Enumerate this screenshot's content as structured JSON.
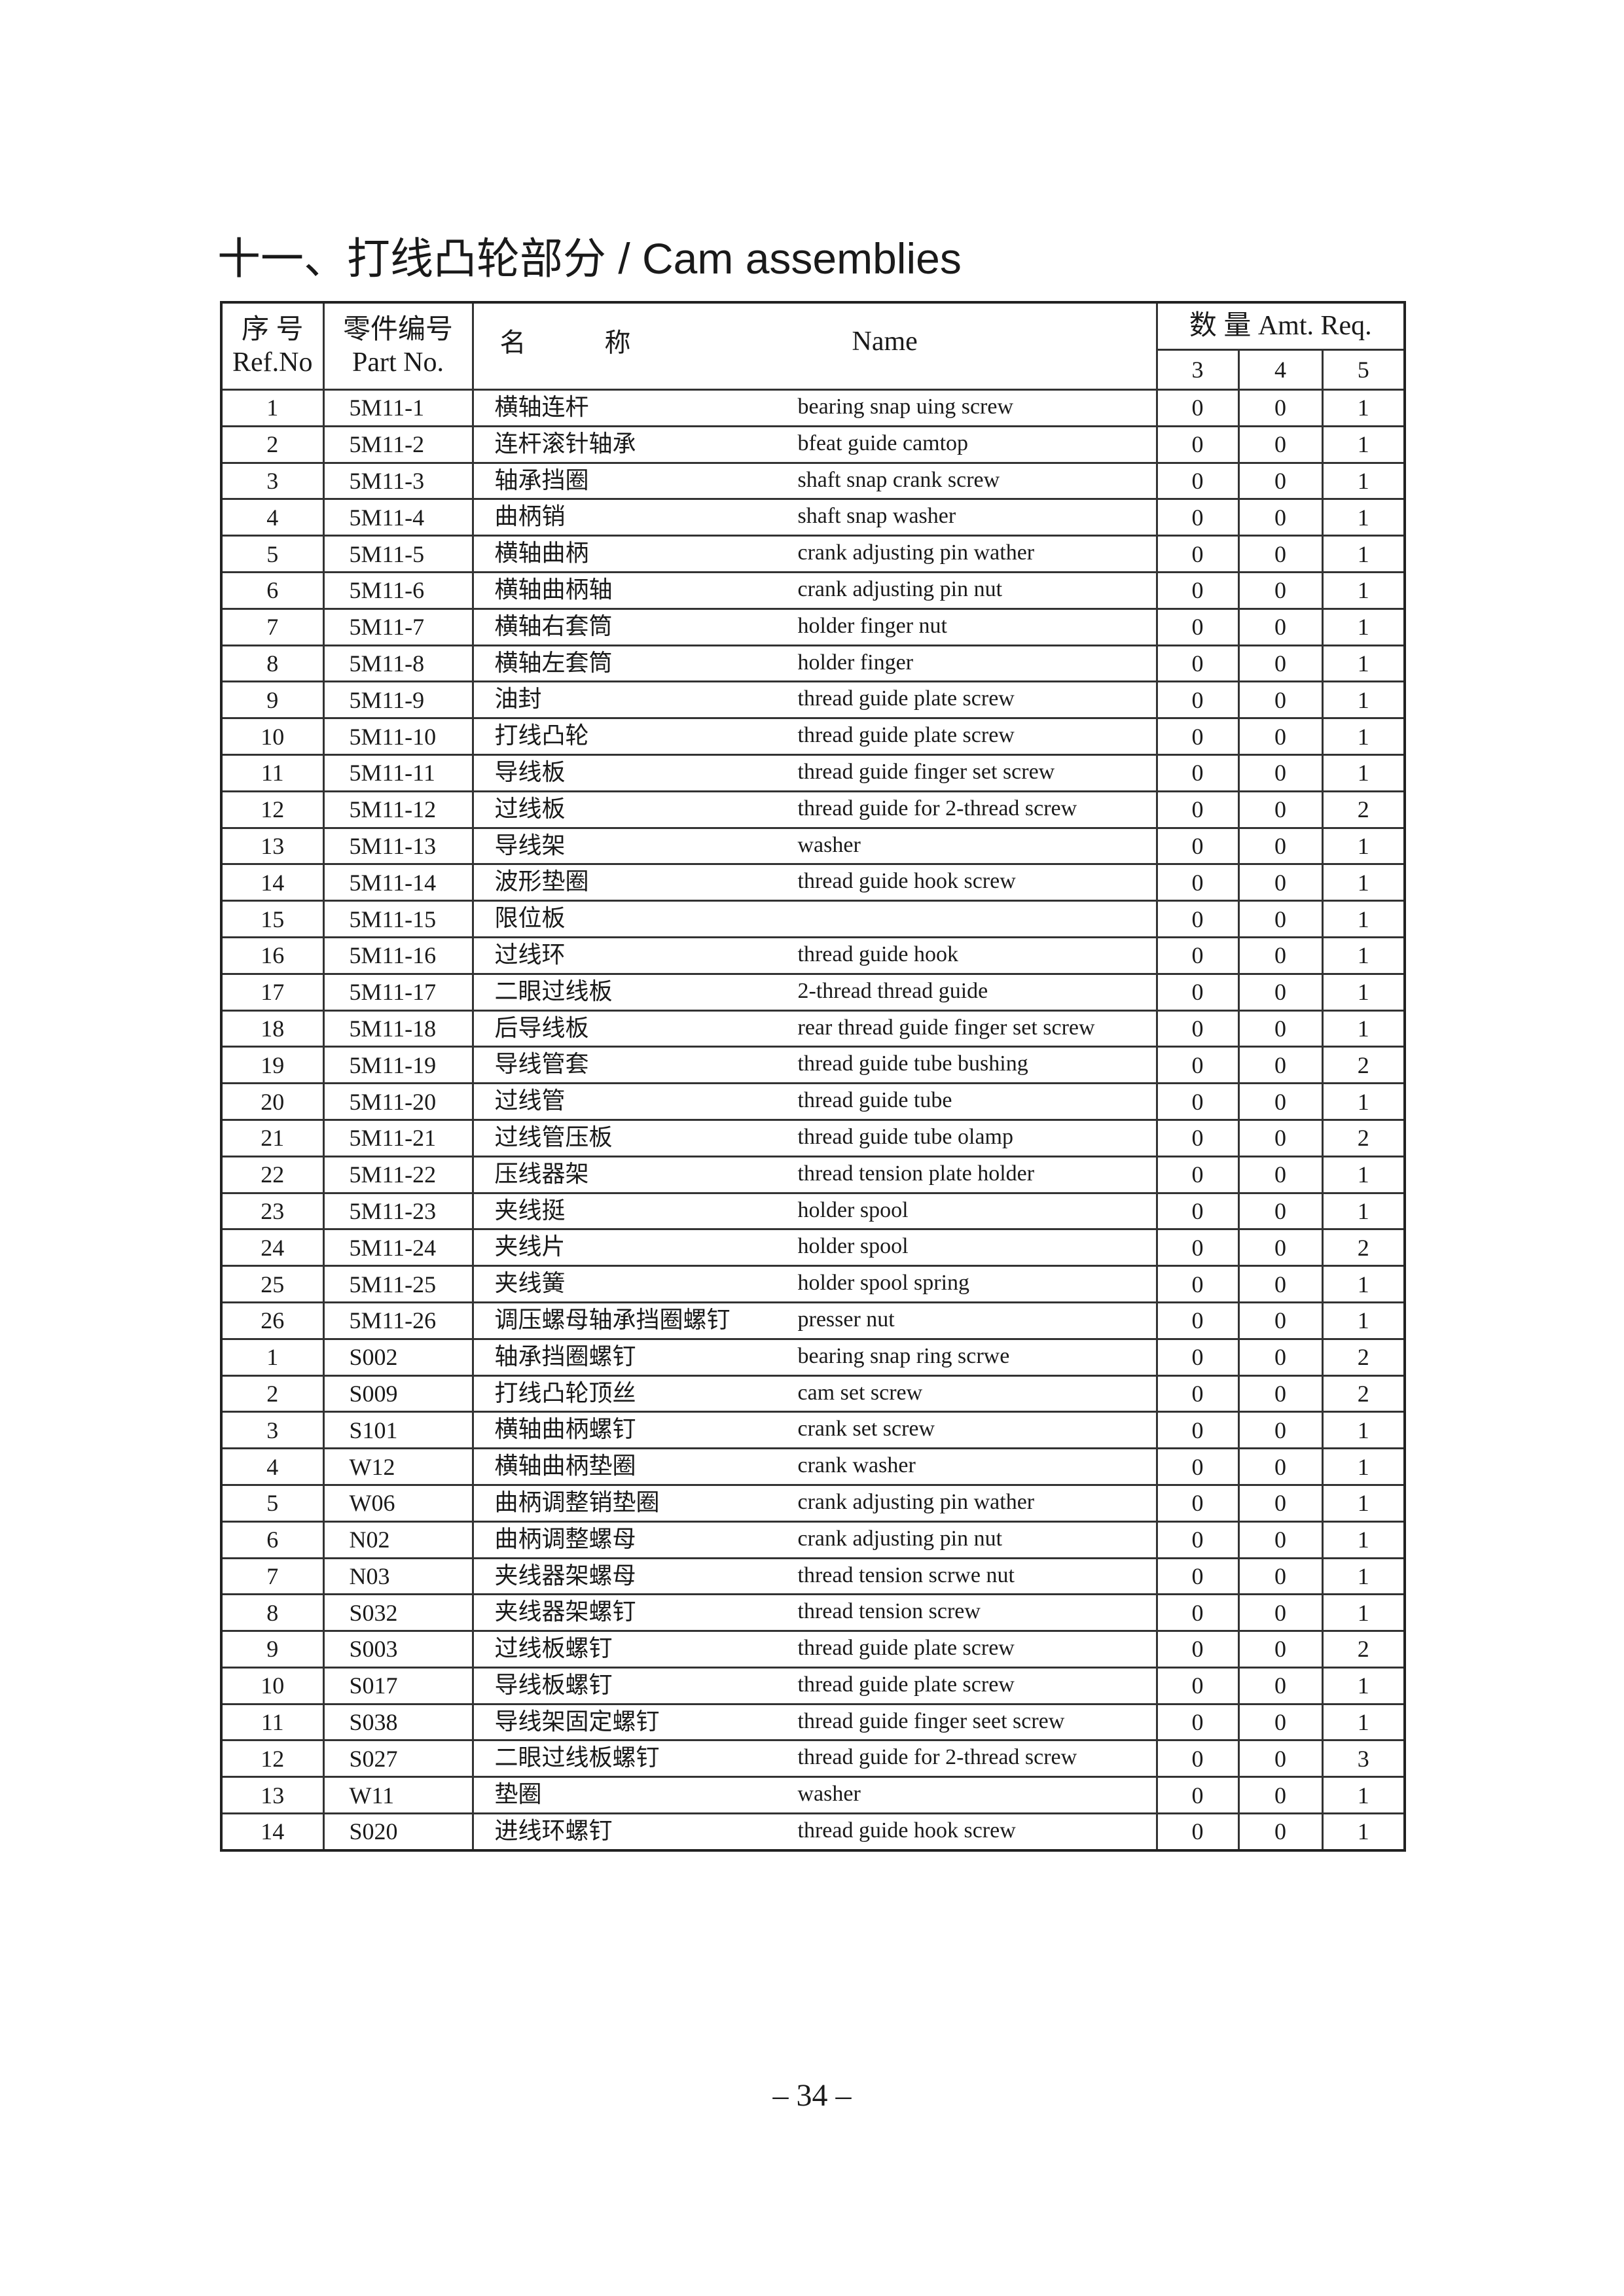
{
  "title": "十一、打线凸轮部分 / Cam assemblies",
  "table": {
    "headers": {
      "ref_cn": "序 号",
      "ref_en": "Ref.No",
      "part_cn": "零件编号",
      "part_en": "Part No.",
      "name_cn_1": "名",
      "name_cn_2": "称",
      "name_en": "Name",
      "amt": "数 量 Amt. Req.",
      "amt_cols": [
        "3",
        "4",
        "5"
      ]
    },
    "rows": [
      {
        "ref": "1",
        "part": "5M11-1",
        "cn": "横轴连杆",
        "en": "bearing snap uing screw",
        "q": [
          "0",
          "0",
          "1"
        ]
      },
      {
        "ref": "2",
        "part": "5M11-2",
        "cn": "连杆滚针轴承",
        "en": "bfeat guide camtop",
        "q": [
          "0",
          "0",
          "1"
        ]
      },
      {
        "ref": "3",
        "part": "5M11-3",
        "cn": "轴承挡圈",
        "en": "shaft snap crank screw",
        "q": [
          "0",
          "0",
          "1"
        ]
      },
      {
        "ref": "4",
        "part": "5M11-4",
        "cn": "曲柄销",
        "en": "shaft snap washer",
        "q": [
          "0",
          "0",
          "1"
        ]
      },
      {
        "ref": "5",
        "part": "5M11-5",
        "cn": "横轴曲柄",
        "en": "crank adjusting pin wather",
        "q": [
          "0",
          "0",
          "1"
        ]
      },
      {
        "ref": "6",
        "part": "5M11-6",
        "cn": "横轴曲柄轴",
        "en": "crank adjusting pin nut",
        "q": [
          "0",
          "0",
          "1"
        ]
      },
      {
        "ref": "7",
        "part": "5M11-7",
        "cn": "横轴右套筒",
        "en": "holder finger nut",
        "q": [
          "0",
          "0",
          "1"
        ]
      },
      {
        "ref": "8",
        "part": "5M11-8",
        "cn": "横轴左套筒",
        "en": "holder finger",
        "q": [
          "0",
          "0",
          "1"
        ]
      },
      {
        "ref": "9",
        "part": "5M11-9",
        "cn": "油封",
        "en": "thread guide plate screw",
        "q": [
          "0",
          "0",
          "1"
        ]
      },
      {
        "ref": "10",
        "part": "5M11-10",
        "cn": "打线凸轮",
        "en": "thread guide plate screw",
        "q": [
          "0",
          "0",
          "1"
        ]
      },
      {
        "ref": "11",
        "part": "5M11-11",
        "cn": "导线板",
        "en": "thread guide finger set screw",
        "q": [
          "0",
          "0",
          "1"
        ]
      },
      {
        "ref": "12",
        "part": "5M11-12",
        "cn": "过线板",
        "en": "thread guide for 2-thread screw",
        "q": [
          "0",
          "0",
          "2"
        ]
      },
      {
        "ref": "13",
        "part": "5M11-13",
        "cn": "导线架",
        "en": "washer",
        "q": [
          "0",
          "0",
          "1"
        ]
      },
      {
        "ref": "14",
        "part": "5M11-14",
        "cn": "波形垫圈",
        "en": "thread guide hook screw",
        "q": [
          "0",
          "0",
          "1"
        ]
      },
      {
        "ref": "15",
        "part": "5M11-15",
        "cn": "限位板",
        "en": "",
        "q": [
          "0",
          "0",
          "1"
        ]
      },
      {
        "ref": "16",
        "part": "5M11-16",
        "cn": "过线环",
        "en": "thread guide hook",
        "q": [
          "0",
          "0",
          "1"
        ]
      },
      {
        "ref": "17",
        "part": "5M11-17",
        "cn": "二眼过线板",
        "en": "2-thread thread guide",
        "q": [
          "0",
          "0",
          "1"
        ]
      },
      {
        "ref": "18",
        "part": "5M11-18",
        "cn": "后导线板",
        "en": "rear thread guide finger set screw",
        "q": [
          "0",
          "0",
          "1"
        ]
      },
      {
        "ref": "19",
        "part": "5M11-19",
        "cn": "导线管套",
        "en": "thread guide tube bushing",
        "q": [
          "0",
          "0",
          "2"
        ]
      },
      {
        "ref": "20",
        "part": "5M11-20",
        "cn": "过线管",
        "en": "thread guide tube",
        "q": [
          "0",
          "0",
          "1"
        ]
      },
      {
        "ref": "21",
        "part": "5M11-21",
        "cn": "过线管压板",
        "en": "thread guide tube olamp",
        "q": [
          "0",
          "0",
          "2"
        ]
      },
      {
        "ref": "22",
        "part": "5M11-22",
        "cn": "压线器架",
        "en": "thread tension plate holder",
        "q": [
          "0",
          "0",
          "1"
        ]
      },
      {
        "ref": "23",
        "part": "5M11-23",
        "cn": "夹线挺",
        "en": "holder spool",
        "q": [
          "0",
          "0",
          "1"
        ]
      },
      {
        "ref": "24",
        "part": "5M11-24",
        "cn": "夹线片",
        "en": "holder spool",
        "q": [
          "0",
          "0",
          "2"
        ]
      },
      {
        "ref": "25",
        "part": "5M11-25",
        "cn": "夹线簧",
        "en": "holder spool spring",
        "q": [
          "0",
          "0",
          "1"
        ]
      },
      {
        "ref": "26",
        "part": "5M11-26",
        "cn": "调压螺母轴承挡圈螺钉",
        "en": "presser nut",
        "q": [
          "0",
          "0",
          "1"
        ]
      },
      {
        "ref": "1",
        "part": "S002",
        "cn": "轴承挡圈螺钉",
        "en": "bearing snap ring scrwe",
        "q": [
          "0",
          "0",
          "2"
        ]
      },
      {
        "ref": "2",
        "part": "S009",
        "cn": "打线凸轮顶丝",
        "en": "cam set screw",
        "q": [
          "0",
          "0",
          "2"
        ]
      },
      {
        "ref": "3",
        "part": "S101",
        "cn": "横轴曲柄螺钉",
        "en": "crank set screw",
        "q": [
          "0",
          "0",
          "1"
        ]
      },
      {
        "ref": "4",
        "part": "W12",
        "cn": "横轴曲柄垫圈",
        "en": "crank washer",
        "q": [
          "0",
          "0",
          "1"
        ]
      },
      {
        "ref": "5",
        "part": "W06",
        "cn": "曲柄调整销垫圈",
        "en": "crank adjusting pin wather",
        "q": [
          "0",
          "0",
          "1"
        ]
      },
      {
        "ref": "6",
        "part": "N02",
        "cn": "曲柄调整螺母",
        "en": "crank adjusting pin nut",
        "q": [
          "0",
          "0",
          "1"
        ]
      },
      {
        "ref": "7",
        "part": "N03",
        "cn": "夹线器架螺母",
        "en": "thread tension scrwe nut",
        "q": [
          "0",
          "0",
          "1"
        ]
      },
      {
        "ref": "8",
        "part": "S032",
        "cn": "夹线器架螺钉",
        "en": "thread tension screw",
        "q": [
          "0",
          "0",
          "1"
        ]
      },
      {
        "ref": "9",
        "part": "S003",
        "cn": "过线板螺钉",
        "en": "thread guide plate screw",
        "q": [
          "0",
          "0",
          "2"
        ]
      },
      {
        "ref": "10",
        "part": "S017",
        "cn": "导线板螺钉",
        "en": "thread guide plate screw",
        "q": [
          "0",
          "0",
          "1"
        ]
      },
      {
        "ref": "11",
        "part": "S038",
        "cn": "导线架固定螺钉",
        "en": "thread guide finger seet screw",
        "q": [
          "0",
          "0",
          "1"
        ]
      },
      {
        "ref": "12",
        "part": "S027",
        "cn": "二眼过线板螺钉",
        "en": "thread guide for 2-thread screw",
        "q": [
          "0",
          "0",
          "3"
        ]
      },
      {
        "ref": "13",
        "part": "W11",
        "cn": "垫圈",
        "en": "washer",
        "q": [
          "0",
          "0",
          "1"
        ]
      },
      {
        "ref": "14",
        "part": "S020",
        "cn": "进线环螺钉",
        "en": "thread guide hook screw",
        "q": [
          "0",
          "0",
          "1"
        ]
      }
    ]
  },
  "page_number": "– 34 –"
}
